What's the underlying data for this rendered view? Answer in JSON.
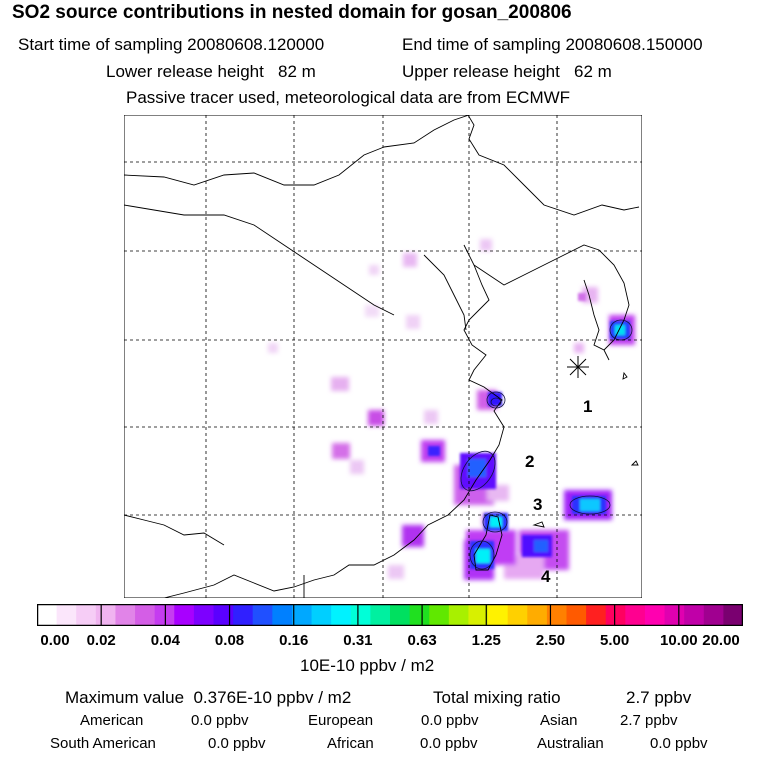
{
  "header": {
    "title": "SO2 source contributions in nested domain for gosan_200806",
    "start_label": "Start time of sampling 20080608.120000",
    "end_label": "End time of sampling 20080608.150000",
    "lower_label": "Lower release height   82 m",
    "upper_label": "Upper release height   62 m",
    "note": "Passive tracer used, meteorological data are from ECMWF"
  },
  "map": {
    "region_labels": [
      "1",
      "2",
      "3",
      "4"
    ],
    "marker_symbol": "asterisk-icon"
  },
  "colorbar": {
    "ticks": [
      "0.00",
      "0.02",
      "0.04",
      "0.08",
      "0.16",
      "0.31",
      "0.63",
      "1.25",
      "2.50",
      "5.00",
      "10.00",
      "20.00"
    ],
    "units": "10E-10 ppbv / m2",
    "colors": [
      "#ffffff",
      "#fbe6fb",
      "#f6cdf6",
      "#f0b4f0",
      "#e184e8",
      "#d45ee6",
      "#c53cf0",
      "#a800ff",
      "#7d00ff",
      "#5a00ff",
      "#3020ff",
      "#2050ff",
      "#0080ff",
      "#00a8ff",
      "#00cfff",
      "#00f2ff",
      "#00ffd8",
      "#00f0a0",
      "#00e060",
      "#20e020",
      "#60e800",
      "#a8f000",
      "#d8f000",
      "#fff200",
      "#ffd000",
      "#ffac00",
      "#ff8000",
      "#ff5a00",
      "#ff2020",
      "#ff0060",
      "#ff0090",
      "#ff00b0",
      "#e000b0",
      "#c000a8",
      "#a00090",
      "#7a0070"
    ]
  },
  "summary": {
    "max_label": "Maximum value  0.376E-10 ppbv / m2",
    "total_label": "Total mixing ratio",
    "total_value": "2.7 ppbv",
    "regions": [
      {
        "name": "American",
        "value": "0.0 ppbv"
      },
      {
        "name": "European",
        "value": "0.0 ppbv"
      },
      {
        "name": "Asian",
        "value": "2.7 ppbv"
      },
      {
        "name": "South American",
        "value": "0.0 ppbv"
      },
      {
        "name": "African",
        "value": "0.0 ppbv"
      },
      {
        "name": "Australian",
        "value": "0.0 ppbv"
      }
    ]
  }
}
